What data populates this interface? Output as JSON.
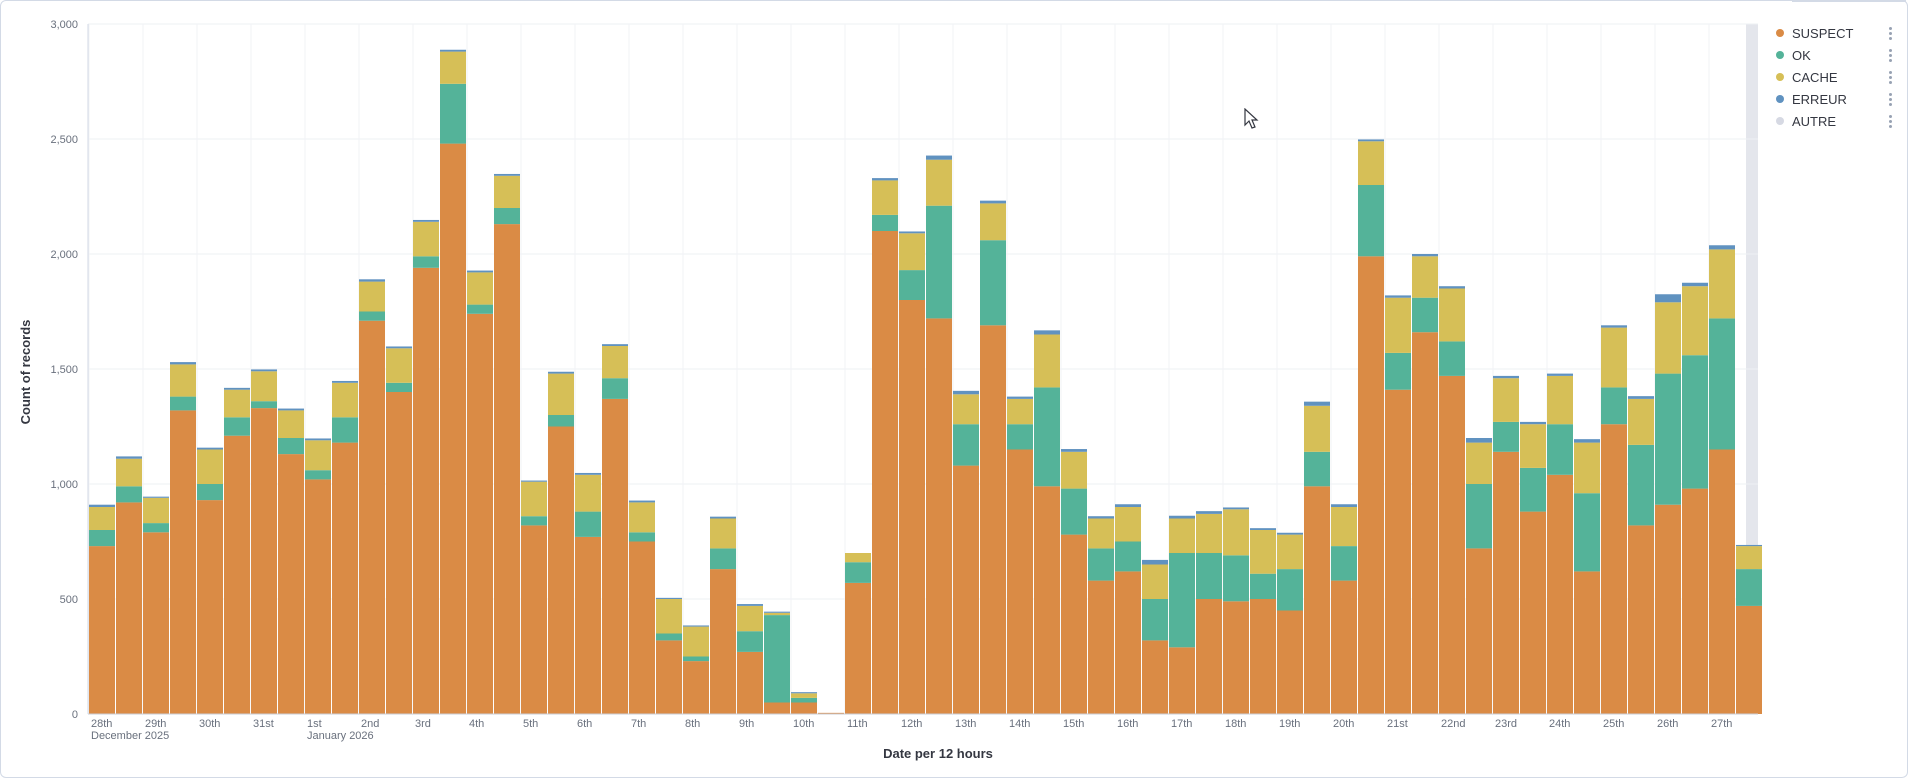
{
  "chart_data": {
    "type": "bar",
    "stacked": true,
    "xlabel": "Date per 12 hours",
    "ylabel": "Count of records",
    "ylim": [
      0,
      3000
    ],
    "yticks": [
      "0",
      "500",
      "1,000",
      "1,500",
      "2,000",
      "2,500",
      "3,000"
    ],
    "grid": true,
    "legend_position": "right",
    "x_tick_labels": [
      {
        "label": "28th",
        "sub": "December 2025",
        "bar": 0
      },
      {
        "label": "29th",
        "sub": "",
        "bar": 2
      },
      {
        "label": "30th",
        "sub": "",
        "bar": 4
      },
      {
        "label": "31st",
        "sub": "",
        "bar": 6
      },
      {
        "label": "1st",
        "sub": "January 2026",
        "bar": 8
      },
      {
        "label": "2nd",
        "sub": "",
        "bar": 10
      },
      {
        "label": "3rd",
        "sub": "",
        "bar": 12
      },
      {
        "label": "4th",
        "sub": "",
        "bar": 14
      },
      {
        "label": "5th",
        "sub": "",
        "bar": 16
      },
      {
        "label": "6th",
        "sub": "",
        "bar": 18
      },
      {
        "label": "7th",
        "sub": "",
        "bar": 20
      },
      {
        "label": "8th",
        "sub": "",
        "bar": 22
      },
      {
        "label": "9th",
        "sub": "",
        "bar": 24
      },
      {
        "label": "10th",
        "sub": "",
        "bar": 26
      },
      {
        "label": "11th",
        "sub": "",
        "bar": 28
      },
      {
        "label": "12th",
        "sub": "",
        "bar": 30
      },
      {
        "label": "13th",
        "sub": "",
        "bar": 32
      },
      {
        "label": "14th",
        "sub": "",
        "bar": 34
      },
      {
        "label": "15th",
        "sub": "",
        "bar": 36
      },
      {
        "label": "16th",
        "sub": "",
        "bar": 38
      },
      {
        "label": "17th",
        "sub": "",
        "bar": 40
      },
      {
        "label": "18th",
        "sub": "",
        "bar": 42
      },
      {
        "label": "19th",
        "sub": "",
        "bar": 44
      },
      {
        "label": "20th",
        "sub": "",
        "bar": 46
      },
      {
        "label": "21st",
        "sub": "",
        "bar": 48
      },
      {
        "label": "22nd",
        "sub": "",
        "bar": 50
      },
      {
        "label": "23rd",
        "sub": "",
        "bar": 52
      },
      {
        "label": "24th",
        "sub": "",
        "bar": 54
      },
      {
        "label": "25th",
        "sub": "",
        "bar": 56
      },
      {
        "label": "26th",
        "sub": "",
        "bar": 58
      },
      {
        "label": "27th",
        "sub": "",
        "bar": 60
      }
    ],
    "series": [
      {
        "name": "SUSPECT",
        "color": "#da8b45",
        "values": [
          730,
          920,
          790,
          1320,
          930,
          1210,
          1330,
          1130,
          1020,
          1180,
          1710,
          1400,
          1940,
          2480,
          1740,
          2130,
          820,
          1250,
          770,
          1370,
          750,
          320,
          230,
          630,
          270,
          50,
          50,
          5,
          570,
          2100,
          1800,
          1720,
          1080,
          1690,
          1150,
          990,
          780,
          580,
          620,
          320,
          290,
          500,
          490,
          500,
          450,
          990,
          580,
          1990,
          1410,
          1660,
          1470,
          720,
          1140,
          880,
          1040,
          620,
          1260,
          820,
          910,
          980,
          1150,
          470
        ]
      },
      {
        "name": "OK",
        "color": "#54b399",
        "values": [
          70,
          70,
          40,
          60,
          70,
          80,
          30,
          70,
          40,
          110,
          40,
          40,
          50,
          260,
          40,
          70,
          40,
          50,
          110,
          90,
          40,
          30,
          20,
          90,
          90,
          380,
          20,
          0,
          90,
          70,
          130,
          490,
          180,
          370,
          110,
          430,
          200,
          140,
          130,
          180,
          410,
          200,
          200,
          110,
          180,
          150,
          150,
          310,
          160,
          150,
          150,
          280,
          130,
          190,
          220,
          340,
          160,
          350,
          570,
          580,
          570,
          160
        ]
      },
      {
        "name": "CACHE",
        "color": "#d6bf57",
        "values": [
          100,
          120,
          110,
          140,
          150,
          120,
          130,
          120,
          130,
          150,
          130,
          150,
          150,
          140,
          140,
          140,
          150,
          180,
          160,
          140,
          130,
          150,
          130,
          130,
          110,
          10,
          20,
          0,
          40,
          150,
          160,
          200,
          130,
          160,
          110,
          230,
          160,
          130,
          150,
          150,
          150,
          170,
          200,
          190,
          150,
          200,
          170,
          190,
          240,
          180,
          230,
          180,
          190,
          190,
          210,
          220,
          260,
          200,
          310,
          300,
          300,
          100
        ]
      },
      {
        "name": "ERREUR",
        "color": "#6092c0",
        "values": [
          10,
          10,
          5,
          10,
          8,
          8,
          8,
          8,
          8,
          8,
          10,
          8,
          8,
          8,
          8,
          8,
          5,
          8,
          8,
          8,
          8,
          5,
          5,
          8,
          8,
          5,
          5,
          0,
          0,
          10,
          8,
          18,
          15,
          12,
          10,
          18,
          12,
          10,
          12,
          20,
          12,
          12,
          8,
          8,
          8,
          18,
          12,
          8,
          10,
          10,
          10,
          20,
          10,
          10,
          10,
          15,
          10,
          12,
          35,
          15,
          18,
          5
        ]
      },
      {
        "name": "AUTRE",
        "color": "#d6d9e3",
        "values": [
          0,
          0,
          0,
          0,
          0,
          0,
          0,
          0,
          0,
          0,
          0,
          0,
          0,
          0,
          0,
          0,
          0,
          0,
          0,
          0,
          0,
          0,
          0,
          0,
          0,
          0,
          0,
          0,
          0,
          0,
          0,
          0,
          0,
          0,
          0,
          0,
          0,
          0,
          0,
          0,
          0,
          0,
          0,
          0,
          0,
          0,
          0,
          0,
          0,
          0,
          0,
          0,
          0,
          0,
          0,
          0,
          0,
          0,
          0,
          0,
          0,
          0
        ]
      }
    ]
  }
}
